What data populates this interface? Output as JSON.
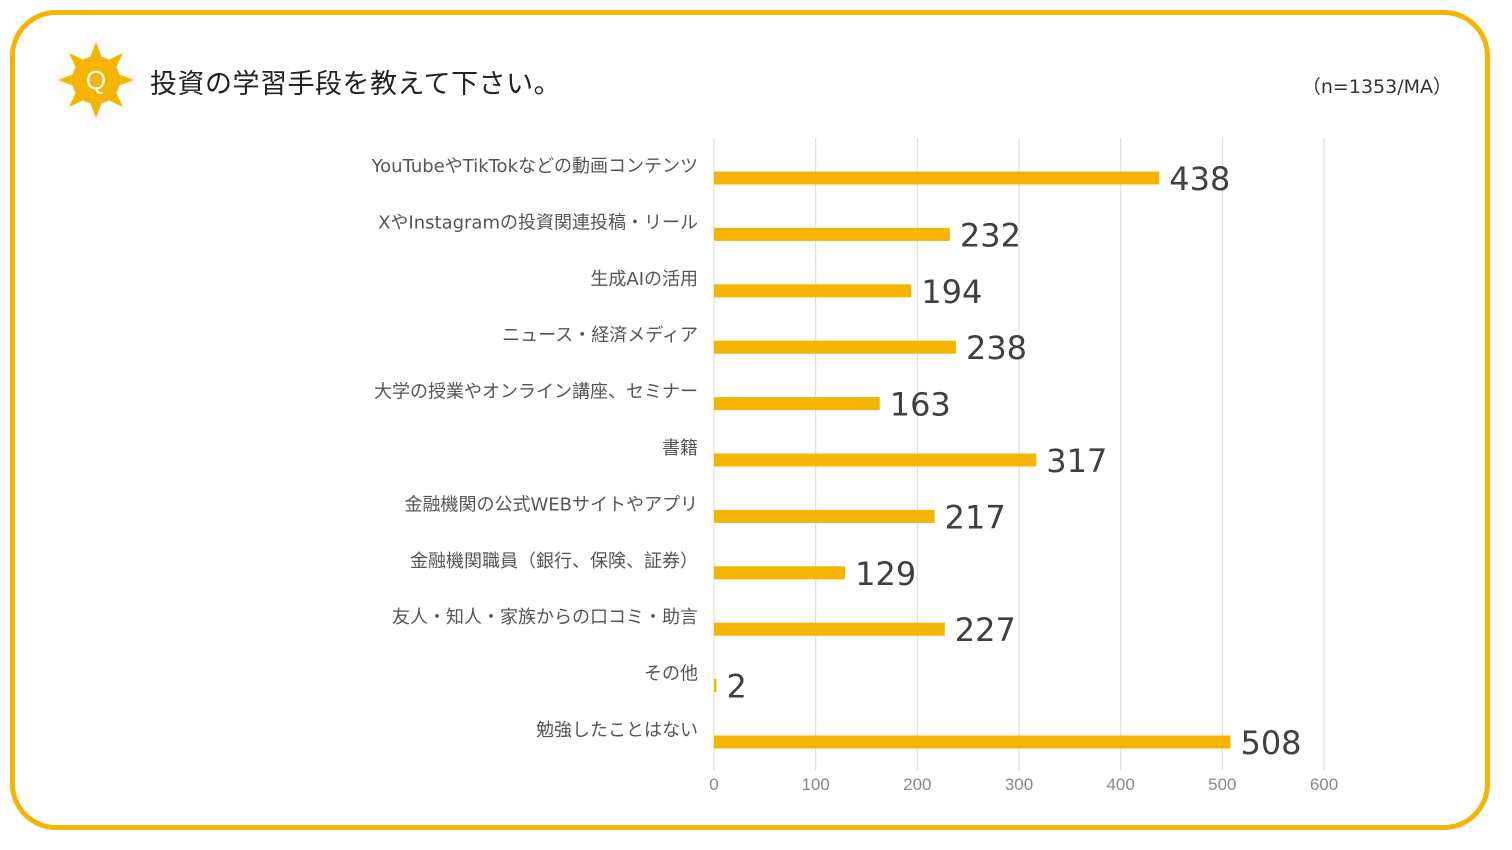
{
  "header": {
    "badge_letter": "Q",
    "title": "投資の学習手段を教えて下さい。",
    "note": "（n=1353/MA）"
  },
  "colors": {
    "accent": "#f4b400",
    "bar": "#f4b400",
    "grid": "#d9d9d9",
    "value_text": "#404040",
    "axis_text": "#888888"
  },
  "chart_data": {
    "type": "bar",
    "orientation": "horizontal",
    "categories": [
      "YouTubeやTikTokなどの動画コンテンツ",
      "XやInstagramの投資関連投稿・リール",
      "生成AIの活用",
      "ニュース・経済メディア",
      "大学の授業やオンライン講座、セミナー",
      "書籍",
      "金融機関の公式WEBサイトやアプリ",
      "金融機関職員（銀行、保険、証券）",
      "友人・知人・家族からの口コミ・助言",
      "その他",
      "勉強したことはない"
    ],
    "values": [
      438,
      232,
      194,
      238,
      163,
      317,
      217,
      129,
      227,
      2,
      508
    ],
    "xlim": [
      0,
      600
    ],
    "xticks": [
      0,
      100,
      200,
      300,
      400,
      500,
      600
    ],
    "grid": true,
    "data_labels": true
  }
}
